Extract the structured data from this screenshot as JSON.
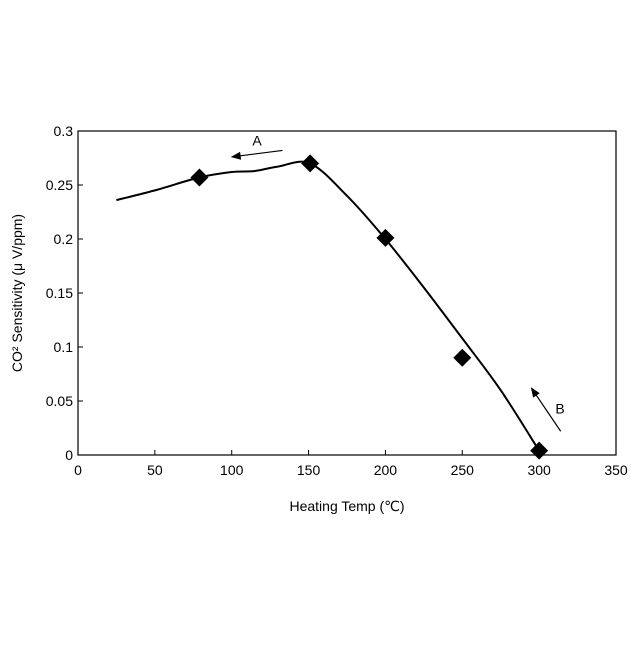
{
  "chart_data": {
    "type": "scatter",
    "title": "",
    "xlabel": "Heating Temp (℃)",
    "ylabel": "CO² Sensitivity (μ V/ppm)",
    "xlim": [
      0,
      350
    ],
    "ylim": [
      0,
      0.3
    ],
    "x_ticks": [
      0,
      50,
      100,
      150,
      200,
      250,
      300,
      350
    ],
    "x_tick_labels": [
      "0",
      "50",
      "100",
      "150",
      "200",
      "250",
      "300",
      "350"
    ],
    "y_ticks": [
      0,
      0.05,
      0.1,
      0.15,
      0.2,
      0.25,
      0.3
    ],
    "y_tick_labels": [
      "0",
      "0.05",
      "0.1",
      "0.15",
      "0.2",
      "0.25",
      "0.3"
    ],
    "grid": false,
    "legend": "none",
    "marker": "diamond",
    "series": [
      {
        "x": [
          79,
          151,
          200,
          250,
          300
        ],
        "y": [
          0.257,
          0.27,
          0.201,
          0.09,
          0.004
        ]
      }
    ],
    "curve": {
      "x": [
        25,
        50,
        79,
        100,
        115,
        130,
        151,
        175,
        200,
        225,
        250,
        275,
        300
      ],
      "y": [
        0.236,
        0.245,
        0.257,
        0.262,
        0.263,
        0.267,
        0.27,
        0.24,
        0.2,
        0.155,
        0.108,
        0.06,
        0.004
      ]
    },
    "annotations": [
      {
        "text": "A",
        "arrow_from": [
          133,
          0.282
        ],
        "arrow_to": [
          100,
          0.276
        ]
      },
      {
        "text": "B",
        "arrow_from": [
          314,
          0.022
        ],
        "arrow_to": [
          295,
          0.062
        ]
      }
    ],
    "colors": {
      "axis": "#000000",
      "curve": "#000000",
      "marker": "#000000"
    }
  }
}
